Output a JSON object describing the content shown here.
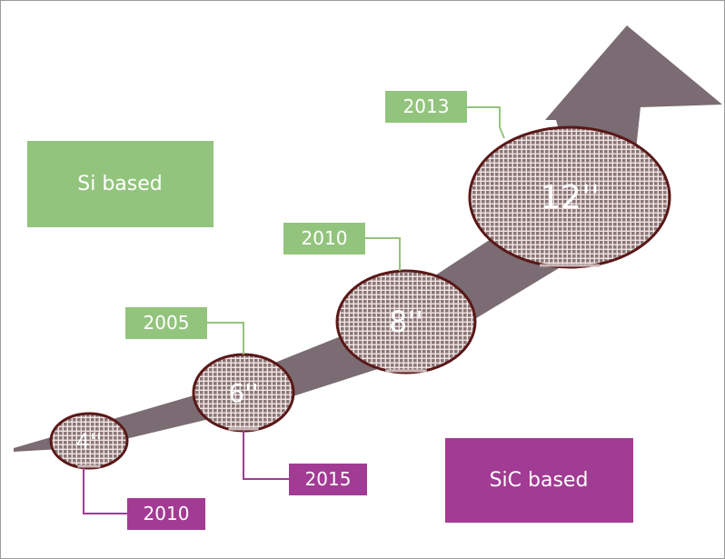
{
  "legend": {
    "si": "Si based",
    "sic": "SiC based"
  },
  "wafers": [
    {
      "size": "4''",
      "sic_year": "2010"
    },
    {
      "size": "6''",
      "si_year": "2005",
      "sic_year": "2015"
    },
    {
      "size": "8''",
      "si_year": "2010"
    },
    {
      "size": "12''",
      "si_year": "2013"
    }
  ]
}
